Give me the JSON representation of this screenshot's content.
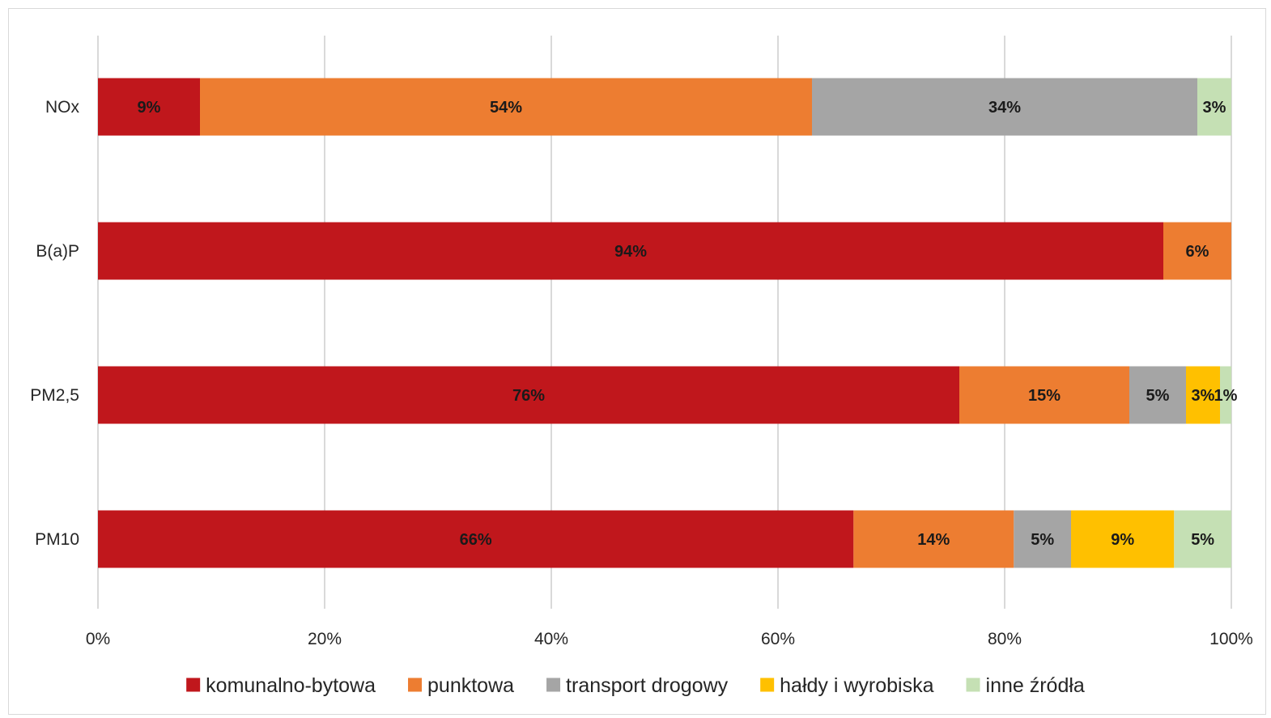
{
  "chart_data": {
    "type": "bar",
    "orientation": "horizontal",
    "stacked": "percent",
    "categories": [
      "NOx",
      "B(a)P",
      "PM2,5",
      "PM10"
    ],
    "series": [
      {
        "name": "komunalno-bytowa",
        "color": "#c0171c",
        "values": [
          9,
          94,
          76,
          66
        ],
        "labels": [
          "9%",
          "94%",
          "76%",
          "66%"
        ]
      },
      {
        "name": "punktowa",
        "color": "#ed7d31",
        "values": [
          54,
          6,
          15,
          14
        ],
        "labels": [
          "54%",
          "6%",
          "15%",
          "14%"
        ]
      },
      {
        "name": "transport drogowy",
        "color": "#a5a5a5",
        "values": [
          34,
          0,
          5,
          5
        ],
        "labels": [
          "34%",
          "",
          "5%",
          "5%"
        ]
      },
      {
        "name": "hałdy i wyrobiska",
        "color": "#ffc000",
        "values": [
          0,
          0,
          3,
          9
        ],
        "labels": [
          "",
          "",
          "3%",
          "9%"
        ]
      },
      {
        "name": "inne źródła",
        "color": "#c5e0b4",
        "values": [
          3,
          0,
          1,
          5
        ],
        "labels": [
          "3%",
          "",
          "1%",
          "5%"
        ]
      }
    ],
    "xlim": [
      0,
      100
    ],
    "xticks": [
      "0%",
      "20%",
      "40%",
      "60%",
      "80%",
      "100%"
    ],
    "title": "",
    "xlabel": "",
    "ylabel": "",
    "grid": true,
    "legend": "bottom"
  }
}
